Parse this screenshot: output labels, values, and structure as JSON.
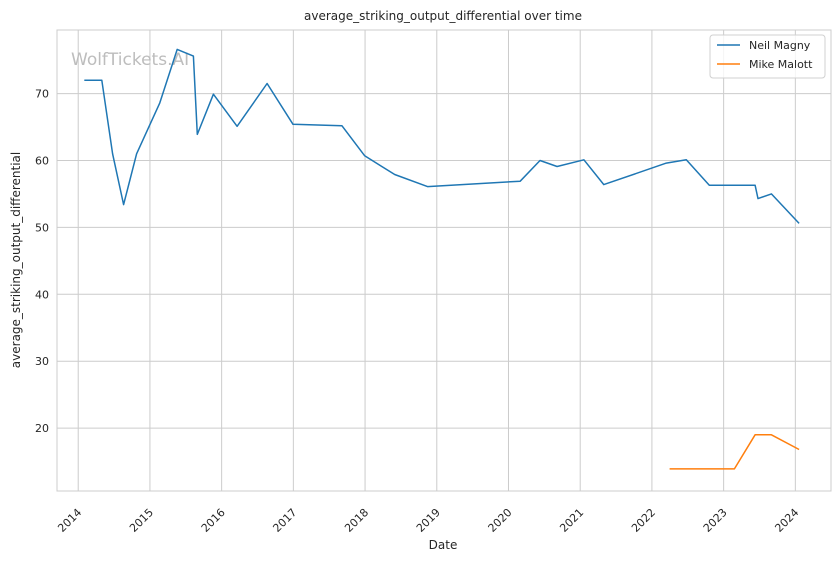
{
  "watermark": "WolfTickets.AI",
  "chart_data": {
    "type": "line",
    "title": "average_striking_output_differential over time",
    "xlabel": "Date",
    "ylabel": "average_striking_output_differential",
    "xlim": [
      "2013-09-15",
      "2024-07-01"
    ],
    "ylim": [
      10.6,
      79.5
    ],
    "x_ticks": [
      "2014",
      "2015",
      "2016",
      "2017",
      "2018",
      "2019",
      "2020",
      "2021",
      "2022",
      "2023",
      "2024"
    ],
    "y_ticks": [
      20,
      30,
      40,
      50,
      60,
      70
    ],
    "grid": true,
    "legend_position": "top-right",
    "series": [
      {
        "name": "Neil Magny",
        "color": "#1f77b4",
        "points": [
          {
            "x": "2014-02-01",
            "y": 72.0
          },
          {
            "x": "2014-05-01",
            "y": 72.0
          },
          {
            "x": "2014-06-25",
            "y": 61.0
          },
          {
            "x": "2014-08-20",
            "y": 53.4
          },
          {
            "x": "2014-10-25",
            "y": 61.0
          },
          {
            "x": "2015-02-20",
            "y": 68.6
          },
          {
            "x": "2015-05-20",
            "y": 76.6
          },
          {
            "x": "2015-08-10",
            "y": 75.6
          },
          {
            "x": "2015-08-30",
            "y": 63.9
          },
          {
            "x": "2015-11-20",
            "y": 69.9
          },
          {
            "x": "2016-03-20",
            "y": 65.1
          },
          {
            "x": "2016-08-20",
            "y": 71.5
          },
          {
            "x": "2016-12-30",
            "y": 65.4
          },
          {
            "x": "2017-09-05",
            "y": 65.2
          },
          {
            "x": "2017-12-30",
            "y": 60.7
          },
          {
            "x": "2018-06-01",
            "y": 57.9
          },
          {
            "x": "2018-11-15",
            "y": 56.1
          },
          {
            "x": "2020-03-01",
            "y": 56.9
          },
          {
            "x": "2020-06-10",
            "y": 60.0
          },
          {
            "x": "2020-09-05",
            "y": 59.1
          },
          {
            "x": "2021-01-20",
            "y": 60.1
          },
          {
            "x": "2021-05-01",
            "y": 56.4
          },
          {
            "x": "2022-03-15",
            "y": 59.6
          },
          {
            "x": "2022-06-25",
            "y": 60.1
          },
          {
            "x": "2022-10-20",
            "y": 56.3
          },
          {
            "x": "2023-06-10",
            "y": 56.3
          },
          {
            "x": "2023-06-25",
            "y": 54.3
          },
          {
            "x": "2023-09-01",
            "y": 55.0
          },
          {
            "x": "2024-01-20",
            "y": 50.6
          }
        ]
      },
      {
        "name": "Mike Malott",
        "color": "#ff7f0e",
        "points": [
          {
            "x": "2022-04-01",
            "y": 13.9
          },
          {
            "x": "2023-02-25",
            "y": 13.9
          },
          {
            "x": "2023-06-10",
            "y": 19.0
          },
          {
            "x": "2023-09-01",
            "y": 19.0
          },
          {
            "x": "2024-01-20",
            "y": 16.8
          }
        ]
      }
    ]
  }
}
